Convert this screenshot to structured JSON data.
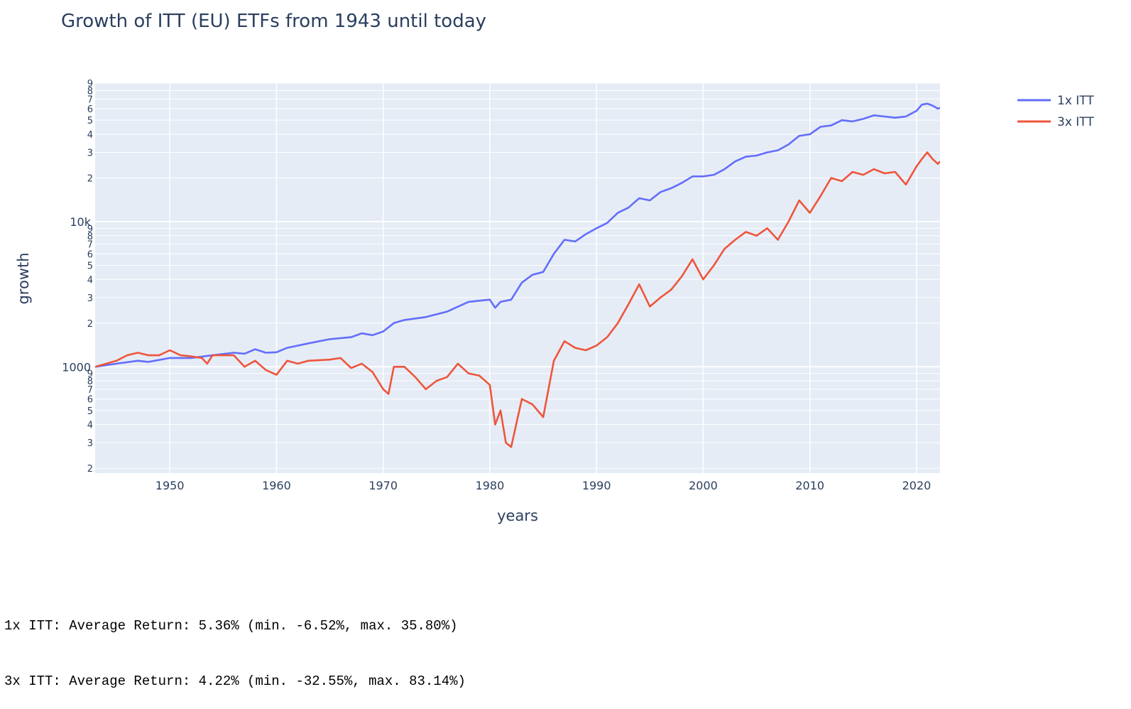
{
  "chart_data": {
    "type": "line",
    "title": "Growth of ITT (EU) ETFs from 1943 until today",
    "xlabel": "years",
    "ylabel": "growth",
    "yscale": "log",
    "xlim": [
      1943,
      2022.2
    ],
    "ylim": [
      185,
      90000
    ],
    "x_ticks": [
      1950,
      1960,
      1970,
      1980,
      1990,
      2000,
      2010,
      2020
    ],
    "y_major_ticks": [
      {
        "value": 1000,
        "label": "1000"
      },
      {
        "value": 10000,
        "label": "10k"
      }
    ],
    "y_minor_labels": [
      "2",
      "3",
      "4",
      "5",
      "6",
      "7",
      "8",
      "9"
    ],
    "grid": true,
    "legend_position": "top-right",
    "plot_background": "#e5ecf6",
    "series": [
      {
        "name": "1x ITT",
        "color": "#636efa",
        "x": [
          1943,
          1945,
          1947,
          1948,
          1950,
          1952,
          1954,
          1956,
          1957,
          1958,
          1959,
          1960,
          1961,
          1963,
          1965,
          1967,
          1968,
          1969,
          1970,
          1971,
          1972,
          1974,
          1976,
          1978,
          1979,
          1980,
          1980.5,
          1981,
          1982,
          1983,
          1984,
          1985,
          1986,
          1987,
          1988,
          1989,
          1990,
          1991,
          1992,
          1993,
          1994,
          1995,
          1996,
          1997,
          1998,
          1999,
          2000,
          2001,
          2002,
          2003,
          2004,
          2005,
          2006,
          2007,
          2008,
          2009,
          2010,
          2011,
          2012,
          2013,
          2014,
          2015,
          2016,
          2017,
          2018,
          2019,
          2020,
          2020.5,
          2021,
          2021.5,
          2022,
          2022.2
        ],
        "y": [
          1000,
          1050,
          1100,
          1080,
          1150,
          1150,
          1200,
          1250,
          1230,
          1320,
          1250,
          1260,
          1350,
          1450,
          1550,
          1600,
          1700,
          1650,
          1750,
          2000,
          2100,
          2200,
          2400,
          2800,
          2850,
          2900,
          2550,
          2800,
          2900,
          3800,
          4300,
          4500,
          6000,
          7500,
          7300,
          8200,
          9000,
          9800,
          11500,
          12500,
          14500,
          14000,
          16000,
          17000,
          18500,
          20500,
          20500,
          21000,
          23000,
          26000,
          28000,
          28500,
          30000,
          31000,
          34000,
          39000,
          40000,
          45000,
          46000,
          50000,
          49000,
          51000,
          54000,
          53000,
          52000,
          53000,
          58000,
          64000,
          65000,
          63000,
          60000,
          61000
        ]
      },
      {
        "name": "3x ITT",
        "color": "#ef553b",
        "x": [
          1943,
          1945,
          1946,
          1947,
          1948,
          1949,
          1950,
          1951,
          1952,
          1953,
          1953.5,
          1954,
          1955,
          1956,
          1957,
          1958,
          1959,
          1960,
          1961,
          1962,
          1963,
          1965,
          1966,
          1967,
          1968,
          1969,
          1970,
          1970.5,
          1971,
          1972,
          1973,
          1974,
          1975,
          1976,
          1977,
          1978,
          1979,
          1980,
          1980.5,
          1981,
          1981.5,
          1982,
          1983,
          1984,
          1985,
          1986,
          1987,
          1988,
          1989,
          1990,
          1991,
          1992,
          1993,
          1994,
          1995,
          1996,
          1997,
          1998,
          1999,
          2000,
          2001,
          2002,
          2003,
          2004,
          2005,
          2006,
          2007,
          2008,
          2009,
          2010,
          2011,
          2012,
          2013,
          2014,
          2015,
          2016,
          2017,
          2018,
          2019,
          2020,
          2020.5,
          2021,
          2021.5,
          2022,
          2022.2
        ],
        "y": [
          1000,
          1100,
          1200,
          1250,
          1200,
          1200,
          1300,
          1200,
          1180,
          1150,
          1050,
          1200,
          1200,
          1200,
          1000,
          1100,
          950,
          880,
          1100,
          1050,
          1100,
          1120,
          1150,
          980,
          1050,
          920,
          700,
          650,
          1000,
          1000,
          850,
          700,
          800,
          850,
          1050,
          900,
          870,
          750,
          400,
          500,
          300,
          280,
          600,
          550,
          450,
          1100,
          1500,
          1350,
          1300,
          1400,
          1600,
          2000,
          2700,
          3700,
          2600,
          3000,
          3400,
          4200,
          5500,
          4000,
          5000,
          6500,
          7500,
          8500,
          8000,
          9000,
          7500,
          10000,
          14000,
          11500,
          15000,
          20000,
          19000,
          22000,
          21000,
          23000,
          21500,
          22000,
          18000,
          24000,
          27000,
          30000,
          27000,
          25000,
          26000
        ]
      }
    ]
  },
  "stats_lines": [
    "1x ITT: Average Return: 5.36% (min. -6.52%, max. 35.80%)",
    "3x ITT: Average Return: 4.22% (min. -32.55%, max. 83.14%)"
  ]
}
